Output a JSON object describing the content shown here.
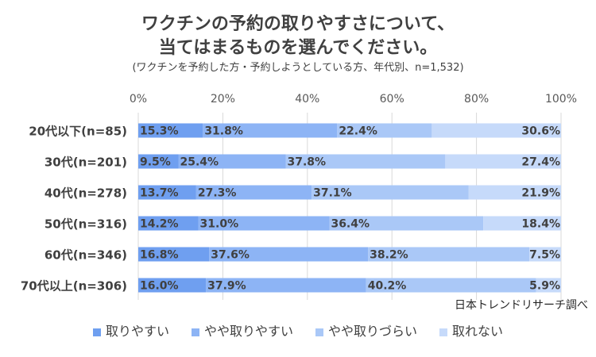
{
  "title_line1": "ワクチンの予約の取りやすさについて、",
  "title_line2": "当てはまるものを選んでください。",
  "subtitle": "(ワクチンを予約した方・予約しようとしている方、年代別、n=1,532)",
  "source": "日本トレンドリサーチ調べ",
  "chart_data": {
    "type": "bar",
    "orientation": "horizontal",
    "stacked": true,
    "categories": [
      "20代以下(n=85)",
      "30代(n=201)",
      "40代(n=278)",
      "50代(n=316)",
      "60代(n=346)",
      "70代以上(n=306)"
    ],
    "series": [
      {
        "name": "取りやすい",
        "values": [
          15.3,
          9.5,
          13.7,
          14.2,
          16.8,
          16.0
        ],
        "color": "#6f9ff0"
      },
      {
        "name": "やや取りやすい",
        "values": [
          31.8,
          25.4,
          27.3,
          31.0,
          37.6,
          37.9
        ],
        "color": "#8db4f5"
      },
      {
        "name": "やや取りづらい",
        "values": [
          22.4,
          37.8,
          37.1,
          36.4,
          38.2,
          40.2
        ],
        "color": "#aac8f7"
      },
      {
        "name": "取れない",
        "values": [
          30.6,
          27.4,
          21.9,
          18.4,
          7.5,
          5.9
        ],
        "color": "#c6dafa"
      }
    ],
    "xticks": [
      "0%",
      "20%",
      "40%",
      "60%",
      "80%",
      "100%"
    ],
    "xlim": [
      0,
      100
    ],
    "legend_position": "bottom",
    "grid": true
  }
}
